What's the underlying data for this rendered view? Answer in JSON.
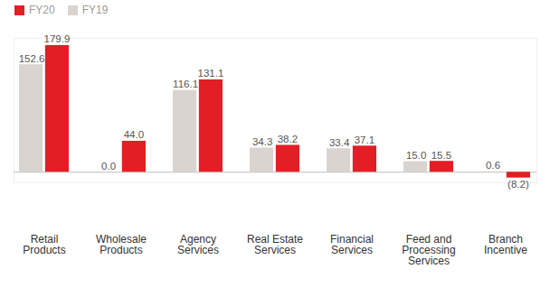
{
  "chart_data": {
    "type": "bar",
    "categories": [
      "Retail Products",
      "Wholesale Products",
      "Agency Services",
      "Real Estate Services",
      "Financial Services",
      "Feed and Processing Services",
      "Branch Incentive"
    ],
    "series": [
      {
        "name": "FY19",
        "color": "#d9d4cf",
        "values": [
          152.6,
          0.0,
          116.1,
          34.3,
          33.4,
          15.0,
          0.6
        ],
        "value_labels": [
          "152.6",
          "0.0",
          "116.1",
          "34.3",
          "33.4",
          "15.0",
          "0.6"
        ]
      },
      {
        "name": "FY20",
        "color": "#e31e24",
        "values": [
          179.9,
          44.0,
          131.1,
          38.2,
          37.1,
          15.5,
          -8.2
        ],
        "value_labels": [
          "179.9",
          "44.0",
          "131.1",
          "38.2",
          "37.1",
          "15.5",
          "(8.2)"
        ]
      }
    ],
    "ylim": [
      -15,
      190
    ],
    "yticks": [
      0
    ],
    "grid": true,
    "legend": "top-left",
    "data_labels": true,
    "tick_labels": "x"
  }
}
